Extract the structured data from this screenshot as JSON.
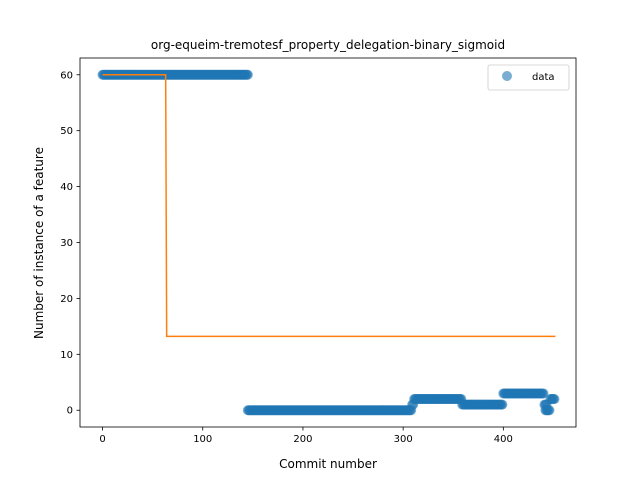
{
  "chart_data": {
    "type": "scatter",
    "title": "org-equeim-tremotesf_property_delegation-binary_sigmoid",
    "xlabel": "Commit number",
    "ylabel": "Number of instance of a feature",
    "xlim": [
      -22.5,
      472.5
    ],
    "ylim": [
      -3,
      63
    ],
    "xticks": [
      0,
      100,
      200,
      300,
      400
    ],
    "yticks": [
      0,
      10,
      20,
      30,
      40,
      50,
      60
    ],
    "grid": false,
    "legend": {
      "placement": "upper right",
      "entries": [
        "data"
      ]
    },
    "colors": {
      "data": "#1f77b4",
      "fit": "#ff7f0e"
    },
    "series": [
      {
        "name": "data",
        "kind": "scatter",
        "segments": [
          {
            "x_start": 0,
            "x_end": 145,
            "y": 60
          },
          {
            "x_start": 145,
            "x_end": 308,
            "y": 0
          },
          {
            "x_start": 309,
            "x_end": 310,
            "y": 1
          },
          {
            "x_start": 311,
            "x_end": 358,
            "y": 2
          },
          {
            "x_start": 359,
            "x_end": 399,
            "y": 1
          },
          {
            "x_start": 400,
            "x_end": 440,
            "y": 3
          },
          {
            "x_start": 441,
            "x_end": 443,
            "y": 1
          },
          {
            "x_start": 442,
            "x_end": 446,
            "y": 0
          },
          {
            "x_start": 447,
            "x_end": 451,
            "y": 2
          }
        ]
      },
      {
        "kind": "line",
        "points": [
          [
            0,
            60
          ],
          [
            62,
            60
          ],
          [
            63,
            60
          ],
          [
            64,
            13.2
          ],
          [
            452,
            13.2
          ]
        ]
      }
    ]
  }
}
